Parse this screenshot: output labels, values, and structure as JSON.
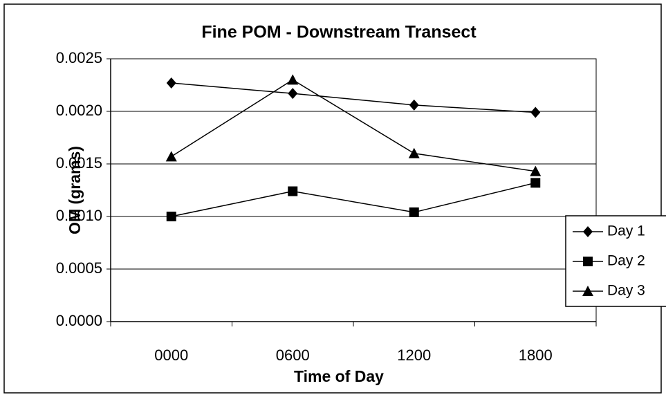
{
  "chart_data": {
    "type": "line",
    "title": "Fine POM - Downstream Transect",
    "xlabel": "Time of Day",
    "ylabel": "OM (grams)",
    "categories": [
      "0000",
      "0600",
      "1200",
      "1800"
    ],
    "series": [
      {
        "name": "Day 1",
        "color": "#000000",
        "marker": "diamond",
        "values": [
          0.00227,
          0.00217,
          0.00206,
          0.00199
        ]
      },
      {
        "name": "Day 2",
        "color": "#000000",
        "marker": "square",
        "values": [
          0.001,
          0.00124,
          0.00104,
          0.00132
        ]
      },
      {
        "name": "Day 3",
        "color": "#000000",
        "marker": "triangle",
        "values": [
          0.00157,
          0.0023,
          0.0016,
          0.00143
        ]
      }
    ],
    "ylim": [
      0,
      0.0025
    ],
    "yticks": [
      {
        "value": 0,
        "label": "0.0000"
      },
      0.0005,
      {
        "value": 0.001,
        "label": "0.0010"
      },
      0.0015,
      {
        "value": 0.002,
        "label": "0.0020"
      },
      0.0025
    ],
    "grid": true,
    "legend": "right"
  }
}
